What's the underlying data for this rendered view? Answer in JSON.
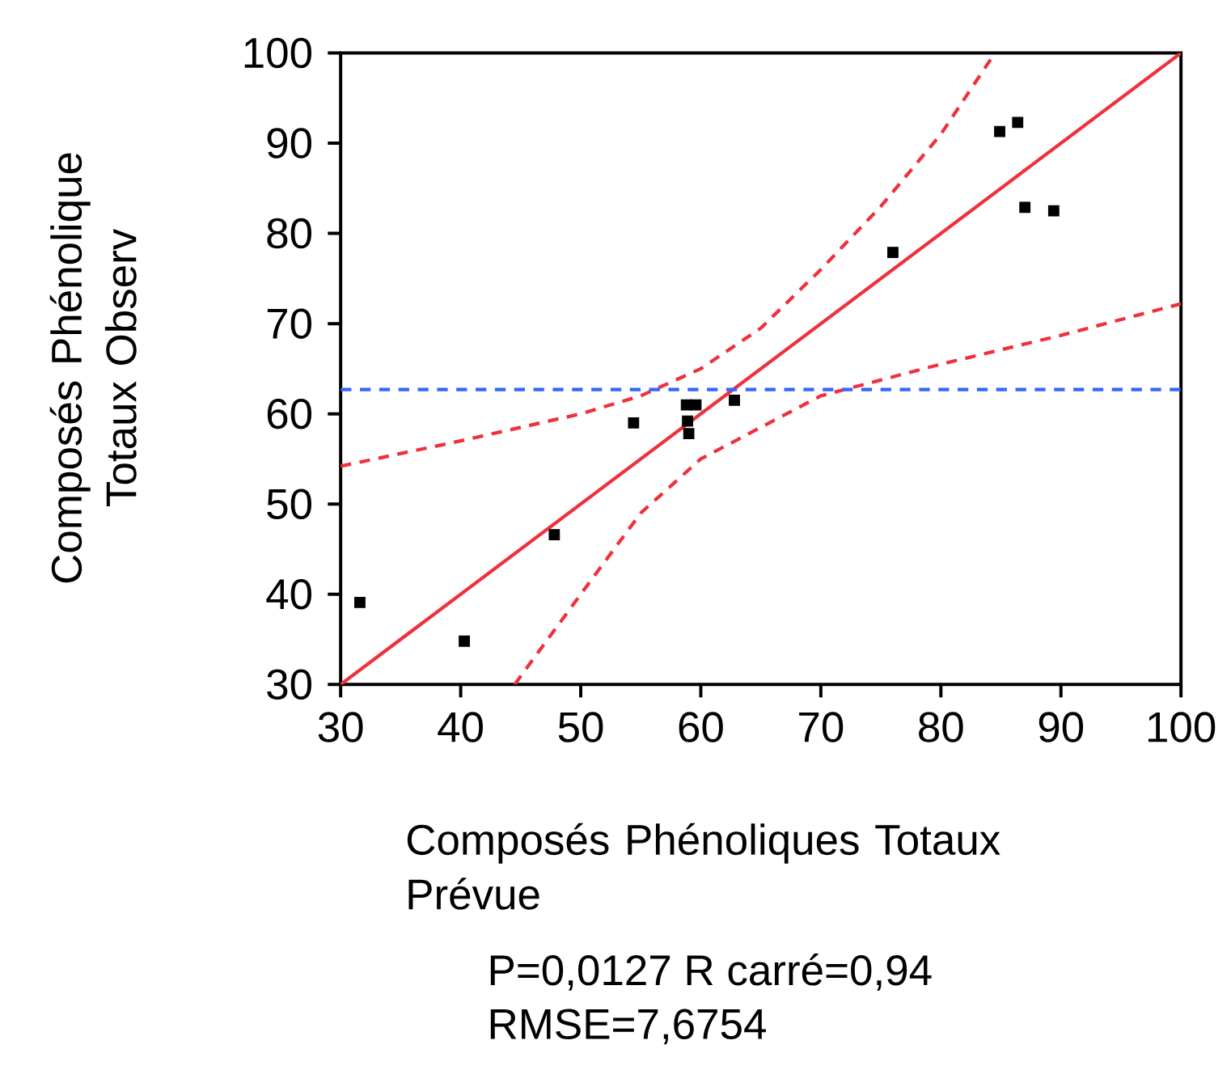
{
  "chart_data": {
    "type": "scatter",
    "xlabel": "Composés Phénoliques Totaux Prévue",
    "ylabel": "Composés Phénolique Totaux Observ",
    "xlim": [
      30,
      100
    ],
    "ylim": [
      30,
      100
    ],
    "xticks": [
      30,
      40,
      50,
      60,
      70,
      80,
      90,
      100
    ],
    "yticks": [
      30,
      40,
      50,
      60,
      70,
      80,
      90,
      100
    ],
    "grid": false,
    "series": [
      {
        "color": "#000000",
        "marker": "square",
        "x": [
          31.6,
          40.3,
          47.8,
          54.4,
          58.8,
          59.6,
          58.9,
          59.0,
          62.8,
          76.0,
          84.9,
          86.4,
          87.0,
          89.4
        ],
        "values": [
          39.1,
          34.8,
          46.6,
          59.0,
          61.0,
          61.0,
          59.2,
          57.8,
          61.5,
          77.9,
          91.3,
          92.3,
          82.9,
          82.5
        ]
      },
      {
        "type": "line",
        "color": "#f0303c",
        "line_style": "solid",
        "marker": "none",
        "x": [
          30,
          100
        ],
        "values": [
          30,
          100
        ]
      },
      {
        "type": "line",
        "color": "#f0303c",
        "line_style": "dashed",
        "marker": "none",
        "x": [
          30,
          40,
          50,
          55,
          60,
          65,
          70,
          75,
          80,
          84.5
        ],
        "values": [
          54.2,
          57,
          60,
          62,
          65,
          69.5,
          76,
          83,
          91,
          100
        ]
      },
      {
        "type": "line",
        "color": "#f0303c",
        "line_style": "dashed",
        "marker": "none",
        "x": [
          44.5,
          50,
          55,
          60,
          65,
          70,
          80,
          90,
          100
        ],
        "values": [
          30,
          40,
          49,
          55,
          58.5,
          62,
          65.5,
          68.7,
          72.2
        ]
      }
    ],
    "ref_lines": [
      {
        "axis": "y",
        "value": 62.7,
        "color": "#3366ff",
        "line_style": "dashed"
      }
    ],
    "annotations": [
      "P=0,0127 R carré=0,94",
      "RMSE=7,6754"
    ]
  }
}
